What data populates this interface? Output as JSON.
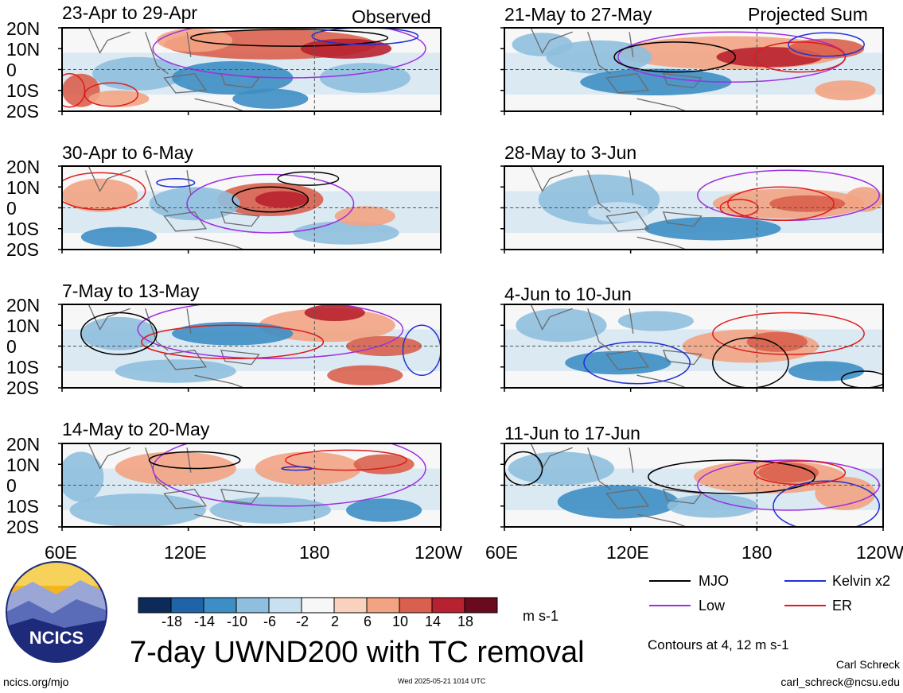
{
  "header": {
    "left_column": "Observed",
    "right_column": "Projected Sum"
  },
  "panels": [
    {
      "title": "23-Apr to 29-Apr"
    },
    {
      "title": "21-May to 27-May"
    },
    {
      "title": "30-Apr to 6-May"
    },
    {
      "title": "28-May to 3-Jun"
    },
    {
      "title": "7-May to 13-May"
    },
    {
      "title": "4-Jun to 10-Jun"
    },
    {
      "title": "14-May to 20-May"
    },
    {
      "title": "11-Jun to 17-Jun"
    }
  ],
  "latitude_labels": [
    "20N",
    "10N",
    "0",
    "10S",
    "20S"
  ],
  "longitude_labels": [
    "60E",
    "120E",
    "180",
    "120W"
  ],
  "colorbar": {
    "ticks": [
      "-18",
      "-14",
      "-10",
      "-6",
      "-2",
      "2",
      "6",
      "10",
      "14",
      "18"
    ],
    "unit": "m s-1",
    "colors": [
      "#0d2b5a",
      "#1f63a8",
      "#3d8ec4",
      "#8ebfde",
      "#c8e0f0",
      "#f7f7f7",
      "#f9d2bd",
      "#f2a383",
      "#d9604e",
      "#b8212f",
      "#6a0a1e"
    ]
  },
  "legend": {
    "items": [
      {
        "label": "MJO",
        "color": "#000000"
      },
      {
        "label": "Kelvin x2",
        "color": "#1f2fd6"
      },
      {
        "label": "Low",
        "color": "#9d30e0"
      },
      {
        "label": "ER",
        "color": "#e01b1b"
      }
    ],
    "contours_note": "Contours at 4, 12 m s-1"
  },
  "title": "7-day UWND200 with TC removal",
  "logo": {
    "text": "NCICS"
  },
  "footer": {
    "url": "ncics.org/mjo",
    "timestamp": "Wed 2025-05-21 1014 UTC",
    "author": "Carl Schreck",
    "email": "carl_schreck@ncsu.edu"
  }
}
